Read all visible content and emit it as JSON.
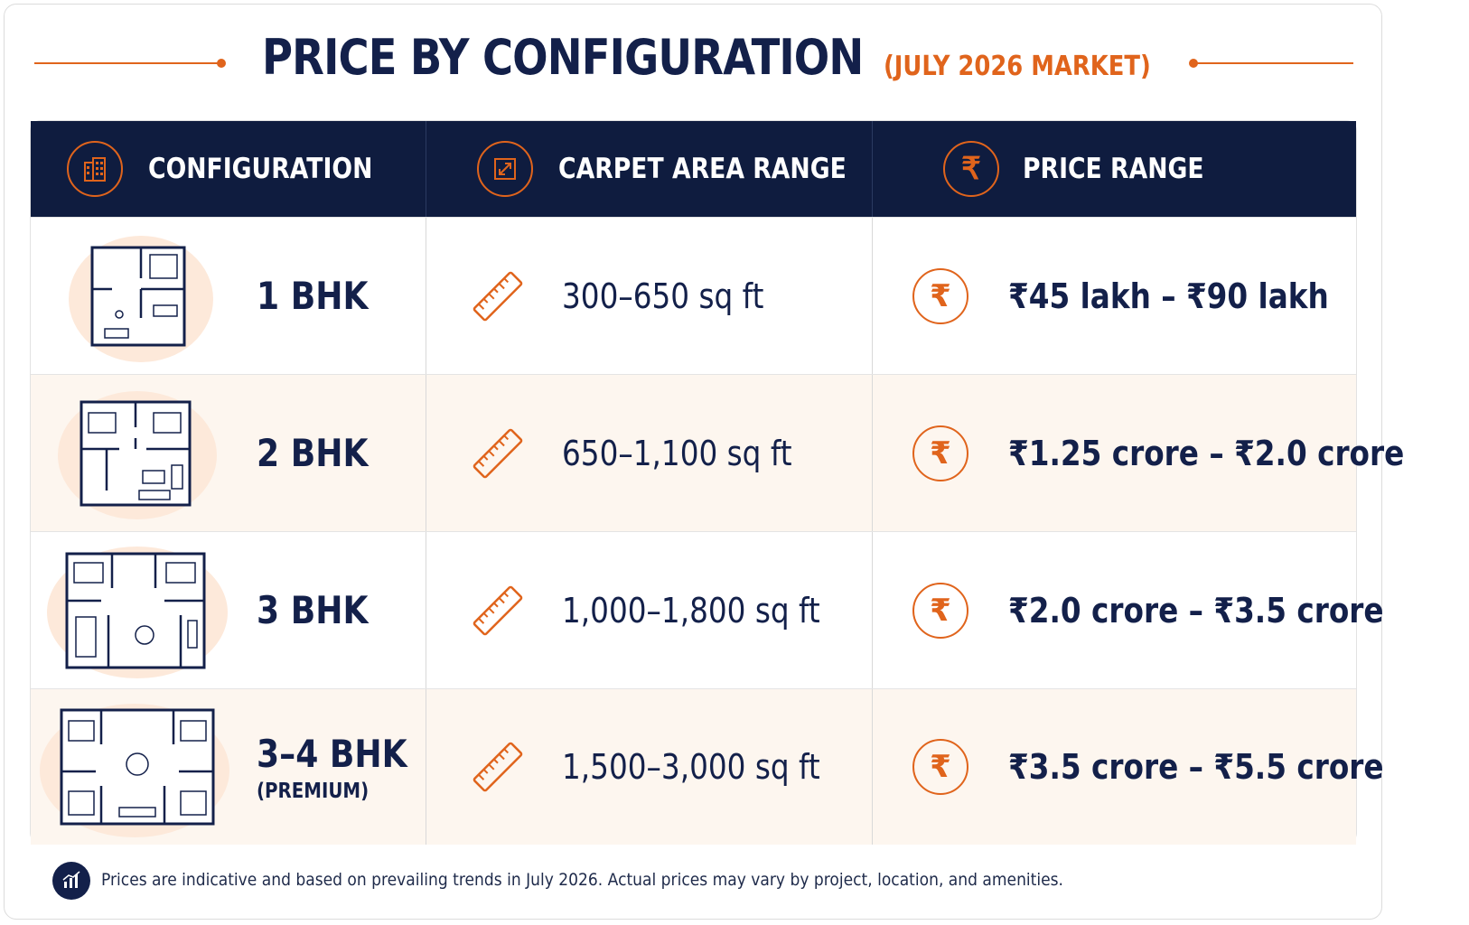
{
  "title": {
    "main": "PRICE BY CONFIGURATION",
    "sub": "(JULY 2026 MARKET)"
  },
  "table": {
    "headers": [
      {
        "label": "CONFIGURATION",
        "icon": "building-icon"
      },
      {
        "label": "CARPET AREA RANGE",
        "icon": "expand-arrows-icon"
      },
      {
        "label": "PRICE RANGE",
        "icon": "rupee-icon"
      }
    ],
    "rows": [
      {
        "config": "1 BHK",
        "config_note": "",
        "area": "300–650 sq ft",
        "price": "₹45 lakh – ₹90 lakh"
      },
      {
        "config": "2 BHK",
        "config_note": "",
        "area": "650–1,100 sq ft",
        "price": "₹1.25 crore – ₹2.0 crore"
      },
      {
        "config": "3 BHK",
        "config_note": "",
        "area": "1,000–1,800 sq ft",
        "price": "₹2.0 crore – ₹3.5 crore"
      },
      {
        "config": "3–4 BHK",
        "config_note": "(PREMIUM)",
        "area": "1,500–3,000 sq ft",
        "price": "₹3.5 crore – ₹5.5 crore"
      }
    ]
  },
  "icons": {
    "ruler": "ruler-icon",
    "rupee_symbol": "₹",
    "floor_plan": "floor-plan-icon",
    "footer": "chart-icon"
  },
  "colors": {
    "navy": "#0f1c3f",
    "accent": "#e0641c",
    "alt_row": "#fdf6ef"
  },
  "footer": {
    "note": "Prices are indicative and based on prevailing trends in July 2026. Actual prices may vary by project, location, and amenities."
  }
}
